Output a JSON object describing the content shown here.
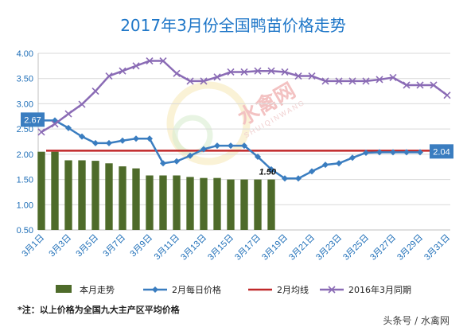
{
  "chart_data": {
    "type": "bar",
    "title": "2017年3月份全国鸭苗价格走势",
    "ylim": [
      0.5,
      4.0
    ],
    "yticks": [
      "0.50",
      "1.00",
      "1.50",
      "2.00",
      "2.50",
      "3.00",
      "3.50",
      "4.00"
    ],
    "grid": "horizontal",
    "legend_position": "bottom",
    "x_labels": [
      "3月1日",
      "3月3日",
      "3月5日",
      "3月7日",
      "3月9日",
      "3月11日",
      "3月13日",
      "3月15日",
      "3月17日",
      "3月19日",
      "3月21日",
      "3月23日",
      "3月25日",
      "3月27日",
      "3月29日",
      "3月31日"
    ],
    "days": [
      1,
      2,
      3,
      4,
      5,
      6,
      7,
      8,
      9,
      10,
      11,
      12,
      13,
      14,
      15,
      16,
      17,
      18,
      19,
      20,
      21,
      22,
      23,
      24,
      25,
      26,
      27,
      28,
      29,
      30,
      31
    ],
    "series": [
      {
        "name": "本月走势",
        "kind": "bar",
        "color": "#4e6b2a",
        "values": [
          2.05,
          2.05,
          1.88,
          1.88,
          1.87,
          1.82,
          1.76,
          1.72,
          1.58,
          1.58,
          1.58,
          1.55,
          1.53,
          1.53,
          1.5,
          1.5,
          1.5,
          1.5
        ]
      },
      {
        "name": "2月每日价格",
        "kind": "line",
        "color": "#3a7dc0",
        "marker": "diamond",
        "values": [
          2.67,
          2.67,
          2.52,
          2.35,
          2.22,
          2.22,
          2.27,
          2.31,
          2.31,
          1.82,
          1.86,
          1.97,
          2.1,
          2.17,
          2.17,
          2.17,
          1.95,
          1.7,
          1.52,
          1.52,
          1.66,
          1.79,
          1.82,
          1.93,
          2.03,
          2.04,
          2.04,
          2.04,
          2.04
        ]
      },
      {
        "name": "2月均线",
        "kind": "hline",
        "color": "#c0282a",
        "value": 2.07
      },
      {
        "name": "2016年3月同期",
        "kind": "line",
        "color": "#8a6bb5",
        "marker": "x",
        "values": [
          2.44,
          2.6,
          2.8,
          2.99,
          3.25,
          3.55,
          3.65,
          3.75,
          3.85,
          3.85,
          3.6,
          3.45,
          3.45,
          3.53,
          3.63,
          3.63,
          3.65,
          3.65,
          3.63,
          3.55,
          3.55,
          3.45,
          3.45,
          3.45,
          3.45,
          3.48,
          3.52,
          3.37,
          3.37,
          3.37,
          3.17
        ]
      }
    ],
    "annotations": {
      "feb_first": "2.67",
      "feb_last": "2.04",
      "bar_last": "1.50"
    }
  },
  "watermark": {
    "main": "水禽网",
    "sub": "SHUIQINWANG"
  },
  "note": "*注：以上价格为全国九大主产区平均价格",
  "footer": "头条号 / 水禽网"
}
